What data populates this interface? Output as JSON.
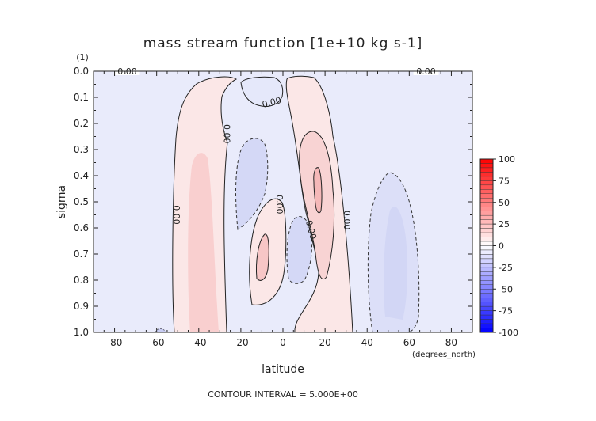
{
  "chart_data": {
    "type": "contour",
    "title": "mass stream function [1e+10 kg s-1]",
    "xlabel": "latitude",
    "x_units_label": "(degrees_north)",
    "ylabel": "sigma",
    "y_units_label": "(1)",
    "xlim": [
      -90,
      90
    ],
    "ylim": [
      0.0,
      1.0
    ],
    "x_ticks": [
      -80,
      -60,
      -40,
      -20,
      0,
      20,
      40,
      60,
      80
    ],
    "y_ticks": [
      "0.0",
      "0.1",
      "0.2",
      "0.3",
      "0.4",
      "0.5",
      "0.6",
      "0.7",
      "0.8",
      "0.9",
      "1.0"
    ],
    "footer": "CONTOUR INTERVAL = 5.000E+00",
    "contour_labels": [
      {
        "text": "0.00",
        "lat": -74,
        "sigma": 0.0
      },
      {
        "text": "0.00",
        "lat": 68,
        "sigma": 0.0
      },
      {
        "text": "0.00",
        "lat": -5,
        "sigma": 0.13
      },
      {
        "text": "0.00",
        "lat": -28,
        "sigma": 0.24
      },
      {
        "text": "0.00",
        "lat": -52,
        "sigma": 0.55
      },
      {
        "text": "0.00",
        "lat": -3,
        "sigma": 0.51
      },
      {
        "text": "0.00",
        "lat": 12,
        "sigma": 0.61
      },
      {
        "text": "0.00",
        "lat": 29,
        "sigma": 0.57
      }
    ],
    "cells": [
      {
        "sign": "positive",
        "approx_lat_range": [
          -52,
          -26
        ],
        "approx_sigma_range": [
          0.02,
          1.0
        ],
        "max_level": 10
      },
      {
        "sign": "negative",
        "approx_lat_range": [
          -25,
          -10
        ],
        "approx_sigma_range": [
          0.25,
          0.62
        ],
        "max_level": -5
      },
      {
        "sign": "positive",
        "approx_lat_range": [
          -16,
          4
        ],
        "approx_sigma_range": [
          0.48,
          0.9
        ],
        "max_level": 10
      },
      {
        "sign": "negative",
        "approx_lat_range": [
          2,
          12
        ],
        "approx_sigma_range": [
          0.57,
          0.81
        ],
        "max_level": -5
      },
      {
        "sign": "positive",
        "approx_lat_range": [
          3,
          28
        ],
        "approx_sigma_range": [
          0.0,
          1.0
        ],
        "max_level": 15
      },
      {
        "sign": "negative",
        "approx_lat_range": [
          40,
          64
        ],
        "approx_sigma_range": [
          0.39,
          1.0
        ],
        "max_level": -5
      }
    ],
    "colorbar": {
      "ticks": [
        "100",
        "75",
        "50",
        "25",
        "0",
        "-25",
        "-50",
        "-75",
        "-100"
      ],
      "range": [
        -100,
        100
      ],
      "levels_step": 5,
      "colormap": "blue-white-red"
    }
  }
}
